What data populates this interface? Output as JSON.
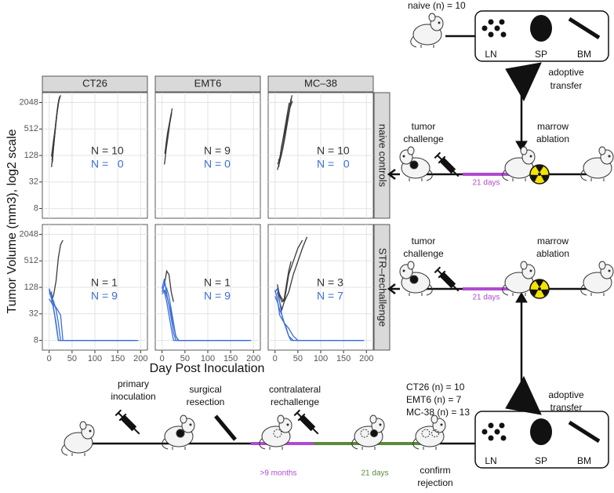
{
  "chart_data": {
    "type": "line",
    "y_label": "Tumor Volume (mm3), log2 scale",
    "x_label": "Day Post Inoculation",
    "y_log_base": 2,
    "grid": true,
    "xlim": [
      -15,
      215
    ],
    "xticks": [
      0,
      50,
      100,
      150,
      200
    ],
    "ylim": [
      4.8,
      3430
    ],
    "yticks": [
      8,
      32,
      128,
      512,
      2048
    ],
    "columns": [
      "CT26",
      "EMT6",
      "MC–38"
    ],
    "rows": [
      {
        "label": "naive controls",
        "panels": [
          {
            "annotations": [
              {
                "text": "N = 10",
                "color": "#333333"
              },
              {
                "text": "N =   0",
                "color": "#3b6fd8"
              }
            ],
            "series": [
              {
                "color": "#3a3a3a",
                "x": [
                  5,
                  9,
                  13,
                  17,
                  21,
                  25
                ],
                "values": [
                  70,
                  180,
                  450,
                  1100,
                  2200,
                  3000
                ]
              },
              {
                "color": "#3a3a3a",
                "x": [
                  6,
                  10,
                  14,
                  18,
                  22
                ],
                "values": [
                  100,
                  220,
                  600,
                  1400,
                  2600
                ]
              },
              {
                "color": "#3a3a3a",
                "x": [
                  7,
                  11,
                  15,
                  19,
                  23
                ],
                "values": [
                  90,
                  300,
                  800,
                  1800,
                  2800
                ]
              },
              {
                "color": "#3a3a3a",
                "x": [
                  5,
                  9,
                  13,
                  17,
                  21
                ],
                "values": [
                  120,
                  260,
                  520,
                  1200,
                  2400
                ]
              }
            ]
          },
          {
            "annotations": [
              {
                "text": "N = 9",
                "color": "#333333"
              },
              {
                "text": "N = 0",
                "color": "#3b6fd8"
              }
            ],
            "series": [
              {
                "color": "#3a3a3a",
                "x": [
                  5,
                  9,
                  13,
                  17,
                  21
                ],
                "values": [
                  80,
                  180,
                  350,
                  700,
                  1200
                ]
              },
              {
                "color": "#3a3a3a",
                "x": [
                  6,
                  10,
                  14,
                  18,
                  22
                ],
                "values": [
                  140,
                  300,
                  500,
                  900,
                  1500
                ]
              },
              {
                "color": "#3a3a3a",
                "x": [
                  8,
                  12,
                  16,
                  20
                ],
                "values": [
                  200,
                  420,
                  700,
                  1100
                ]
              }
            ]
          },
          {
            "annotations": [
              {
                "text": "N = 10",
                "color": "#333333"
              },
              {
                "text": "N =   0",
                "color": "#3b6fd8"
              }
            ],
            "series": [
              {
                "color": "#3a3a3a",
                "x": [
                  5,
                  10,
                  15,
                  20,
                  25,
                  30,
                  35
                ],
                "values": [
                  60,
                  90,
                  150,
                  300,
                  600,
                  1200,
                  2500
                ]
              },
              {
                "color": "#3a3a3a",
                "x": [
                  6,
                  11,
                  16,
                  21,
                  26,
                  31
                ],
                "values": [
                  80,
                  120,
                  250,
                  500,
                  1000,
                  2000
                ]
              },
              {
                "color": "#3a3a3a",
                "x": [
                  7,
                  12,
                  17,
                  22,
                  27,
                  32,
                  37
                ],
                "values": [
                  100,
                  110,
                  180,
                  350,
                  700,
                  1400,
                  3000
                ]
              },
              {
                "color": "#3a3a3a",
                "x": [
                  8,
                  14,
                  20,
                  26,
                  32,
                  38
                ],
                "values": [
                  70,
                  200,
                  400,
                  800,
                  1500,
                  2200
                ]
              }
            ]
          }
        ]
      },
      {
        "label": "STR–rechallenge",
        "panels": [
          {
            "annotations": [
              {
                "text": "N = 1",
                "color": "#333333"
              },
              {
                "text": "N = 9",
                "color": "#3b6fd8"
              }
            ],
            "series": [
              {
                "color": "#3a3a3a",
                "x": [
                  5,
                  10,
                  15,
                  20,
                  25,
                  30
                ],
                "values": [
                  60,
                  90,
                  180,
                  600,
                  1200,
                  1500
                ]
              },
              {
                "color": "#3b6fd8",
                "x": [
                  0,
                  5,
                  10,
                  15,
                  20,
                  25,
                  30,
                  195
                ],
                "values": [
                  120,
                  80,
                  60,
                  40,
                  20,
                  8,
                  8,
                  8
                ]
              },
              {
                "color": "#3b6fd8",
                "x": [
                  0,
                  5,
                  10,
                  15,
                  20,
                  190
                ],
                "values": [
                  90,
                  100,
                  40,
                  20,
                  8,
                  8
                ]
              },
              {
                "color": "#3b6fd8",
                "x": [
                  0,
                  4,
                  8,
                  12,
                  16,
                  20,
                  185
                ],
                "values": [
                  70,
                  60,
                  50,
                  30,
                  15,
                  8,
                  8
                ]
              },
              {
                "color": "#3b6fd8",
                "x": [
                  0,
                  5,
                  10,
                  15,
                  25,
                  30,
                  195
                ],
                "values": [
                  110,
                  70,
                  50,
                  45,
                  30,
                  8,
                  8
                ]
              }
            ]
          },
          {
            "annotations": [
              {
                "text": "N = 1",
                "color": "#333333"
              },
              {
                "text": "N = 9",
                "color": "#3b6fd8"
              }
            ],
            "series": [
              {
                "color": "#3a3a3a",
                "x": [
                  5,
                  10,
                  15,
                  20,
                  25
                ],
                "values": [
                  150,
                  300,
                  250,
                  100,
                  60
                ]
              },
              {
                "color": "#3b6fd8",
                "x": [
                  0,
                  5,
                  10,
                  15,
                  20,
                  25,
                  30,
                  35,
                  195
                ],
                "values": [
                  100,
                  150,
                  120,
                  80,
                  40,
                  20,
                  10,
                  8,
                  8
                ]
              },
              {
                "color": "#3b6fd8",
                "x": [
                  0,
                  5,
                  10,
                  15,
                  20,
                  25,
                  30,
                  190
                ],
                "values": [
                  120,
                  200,
                  90,
                  50,
                  25,
                  12,
                  8,
                  8
                ]
              },
              {
                "color": "#3b6fd8",
                "x": [
                  0,
                  6,
                  12,
                  18,
                  24,
                  30,
                  36,
                  195
                ],
                "values": [
                  90,
                  110,
                  70,
                  40,
                  20,
                  10,
                  8,
                  8
                ]
              },
              {
                "color": "#3b6fd8",
                "x": [
                  0,
                  5,
                  10,
                  15,
                  20,
                  25,
                  185
                ],
                "values": [
                  130,
                  100,
                  60,
                  30,
                  15,
                  8,
                  8
                ]
              }
            ]
          },
          {
            "annotations": [
              {
                "text": "N = 3",
                "color": "#333333"
              },
              {
                "text": "N = 7",
                "color": "#3b6fd8"
              }
            ],
            "series": [
              {
                "color": "#3a3a3a",
                "x": [
                  5,
                  10,
                  15,
                  20,
                  25,
                  30,
                  40,
                  50,
                  60
                ],
                "values": [
                  100,
                  60,
                  40,
                  60,
                  120,
                  250,
                  500,
                  1000,
                  1500
                ]
              },
              {
                "color": "#3a3a3a",
                "x": [
                  5,
                  12,
                  20,
                  30,
                  40,
                  50,
                  60,
                  70
                ],
                "values": [
                  120,
                  80,
                  60,
                  100,
                  250,
                  500,
                  1000,
                  1800
                ]
              },
              {
                "color": "#3a3a3a",
                "x": [
                  5,
                  10,
                  15,
                  20,
                  25,
                  30,
                  35
                ],
                "values": [
                  150,
                  80,
                  60,
                  70,
                  150,
                  300,
                  500
                ]
              },
              {
                "color": "#3b6fd8",
                "x": [
                  0,
                  5,
                  10,
                  15,
                  20,
                  25,
                  30,
                  35,
                  40,
                  195
                ],
                "values": [
                  100,
                  120,
                  60,
                  30,
                  20,
                  15,
                  10,
                  8,
                  8,
                  8
                ]
              },
              {
                "color": "#3b6fd8",
                "x": [
                  0,
                  5,
                  10,
                  15,
                  20,
                  30,
                  40,
                  50,
                  190
                ],
                "values": [
                  80,
                  60,
                  40,
                  30,
                  20,
                  15,
                  10,
                  8,
                  8
                ]
              },
              {
                "color": "#3b6fd8",
                "x": [
                  0,
                  5,
                  10,
                  20,
                  30,
                  40,
                  195
                ],
                "values": [
                  110,
                  70,
                  30,
                  20,
                  10,
                  8,
                  8
                ]
              }
            ]
          }
        ]
      }
    ]
  },
  "diagram": {
    "top_donor": "naive (n) = 10",
    "top_organs": [
      "LN",
      "SP",
      "BM"
    ],
    "transfer_top": [
      "adoptive",
      "transfer"
    ],
    "naive_row": {
      "challenge": [
        "tumor",
        "challenge"
      ],
      "ablation": [
        "marrow",
        "ablation"
      ],
      "interval": "21 days"
    },
    "str_row": {
      "challenge": [
        "tumor",
        "challenge"
      ],
      "ablation": [
        "marrow",
        "ablation"
      ],
      "interval": "21 days"
    },
    "transfer_bottom": [
      "adoptive",
      "transfer"
    ],
    "donors": [
      "CT26 (n) = 10",
      "EMT6 (n) = 7",
      "MC-38 (n) = 13"
    ],
    "bottom_organs": [
      "LN",
      "SP",
      "BM"
    ],
    "timeline": {
      "inoculation": [
        "primary",
        "inoculation"
      ],
      "resection": [
        "surgical",
        "resection"
      ],
      "rechallenge": [
        "contralateral",
        "rechallenge"
      ],
      "wait": ">9 months",
      "interval": "21 days",
      "confirm": [
        "confirm",
        "rejection"
      ]
    }
  }
}
